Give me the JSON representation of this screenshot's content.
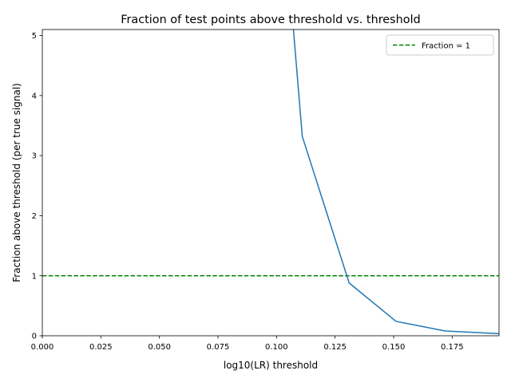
{
  "chart_data": {
    "type": "line",
    "title": "Fraction of test points above threshold vs. threshold",
    "xlabel": "log10(LR) threshold",
    "ylabel": "Fraction above threshold (per true signal)",
    "xlim": [
      0.0,
      0.195
    ],
    "ylim": [
      0.0,
      5.1
    ],
    "x_ticks": [
      0.0,
      0.025,
      0.05,
      0.075,
      0.1,
      0.125,
      0.15,
      0.175
    ],
    "x_tick_labels": [
      "0.000",
      "0.025",
      "0.050",
      "0.075",
      "0.100",
      "0.125",
      "0.150",
      "0.175"
    ],
    "y_ticks": [
      0,
      1,
      2,
      3,
      4,
      5
    ],
    "y_tick_labels": [
      "0",
      "1",
      "2",
      "3",
      "4",
      "5"
    ],
    "grid": false,
    "legend": {
      "placement": "top-right",
      "entries": [
        "Fraction = 1"
      ]
    },
    "series": [
      {
        "color": "#1f77b4",
        "style": "solid",
        "x": [
          0.107,
          0.111,
          0.131,
          0.151,
          0.172,
          0.195
        ],
        "y": [
          5.2,
          3.32,
          0.88,
          0.24,
          0.08,
          0.035
        ]
      }
    ],
    "reference_lines": [
      {
        "name": "Fraction = 1",
        "orientation": "horizontal",
        "y": 1.0,
        "color": "#008000",
        "style": "dashed"
      }
    ]
  }
}
